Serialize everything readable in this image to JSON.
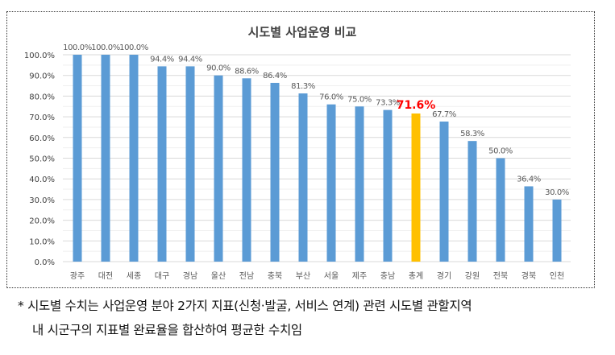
{
  "chart_data": {
    "type": "bar",
    "title": "시도별 사업운영 비교",
    "categories": [
      "광주",
      "대전",
      "세종",
      "대구",
      "경남",
      "울산",
      "전남",
      "충북",
      "부산",
      "서울",
      "제주",
      "충남",
      "총계",
      "경기",
      "강원",
      "전북",
      "경북",
      "인천"
    ],
    "values": [
      100.0,
      100.0,
      100.0,
      94.4,
      94.4,
      90.0,
      88.6,
      86.4,
      81.3,
      76.0,
      75.0,
      73.3,
      71.6,
      67.7,
      58.3,
      50.0,
      36.4,
      30.0
    ],
    "data_labels": [
      "100.0%",
      "100.0%",
      "100.0%",
      "94.4%",
      "94.4%",
      "90.0%",
      "88.6%",
      "86.4%",
      "81.3%",
      "76.0%",
      "75.0%",
      "73.3%",
      "71.6%",
      "67.7%",
      "58.3%",
      "50.0%",
      "36.4%",
      "30.0%"
    ],
    "highlight_category": "총계",
    "ylim": [
      0,
      100
    ],
    "yticks": [
      "0.0%",
      "10.0%",
      "20.0%",
      "30.0%",
      "40.0%",
      "50.0%",
      "60.0%",
      "70.0%",
      "80.0%",
      "90.0%",
      "100.0%"
    ],
    "grid": true,
    "colors": {
      "bar": "#5b9bd5",
      "highlight": "#ffc000",
      "highlight_label": "#ff0000"
    }
  },
  "footnote": {
    "line1": "* 시도별 수치는 사업운영 분야 2가지 지표(신청·발굴, 서비스 연계) 관련 시도별 관할지역",
    "line2": "내 시군구의 지표별 완료율을 합산하여 평균한 수치임"
  }
}
